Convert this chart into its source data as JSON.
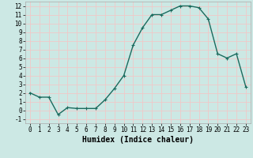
{
  "x": [
    0,
    1,
    2,
    3,
    4,
    5,
    6,
    7,
    8,
    9,
    10,
    11,
    12,
    13,
    14,
    15,
    16,
    17,
    18,
    19,
    20,
    21,
    22,
    23
  ],
  "y": [
    2,
    1.5,
    1.5,
    -0.5,
    0.3,
    0.2,
    0.2,
    0.2,
    1.2,
    2.5,
    4,
    7.5,
    9.5,
    11,
    11,
    11.5,
    12,
    12,
    11.8,
    10.5,
    6.5,
    6,
    6.5,
    2.7
  ],
  "xlabel": "Humidex (Indice chaleur)",
  "xlim": [
    -0.5,
    23.5
  ],
  "ylim": [
    -1.5,
    12.5
  ],
  "yticks": [
    -1,
    0,
    1,
    2,
    3,
    4,
    5,
    6,
    7,
    8,
    9,
    10,
    11,
    12
  ],
  "xticks": [
    0,
    1,
    2,
    3,
    4,
    5,
    6,
    7,
    8,
    9,
    10,
    11,
    12,
    13,
    14,
    15,
    16,
    17,
    18,
    19,
    20,
    21,
    22,
    23
  ],
  "xtick_labels": [
    "0",
    "1",
    "2",
    "3",
    "4",
    "5",
    "6",
    "7",
    "8",
    "9",
    "10",
    "11",
    "12",
    "13",
    "14",
    "15",
    "16",
    "17",
    "18",
    "19",
    "20",
    "21",
    "22",
    "23"
  ],
  "line_color": "#1a6b5e",
  "marker": "+",
  "marker_size": 3,
  "marker_edge_width": 0.8,
  "bg_color": "#cce8e4",
  "grid_color": "#f0c8c8",
  "tick_fontsize": 5.5,
  "xlabel_fontsize": 7,
  "line_width": 1.0
}
